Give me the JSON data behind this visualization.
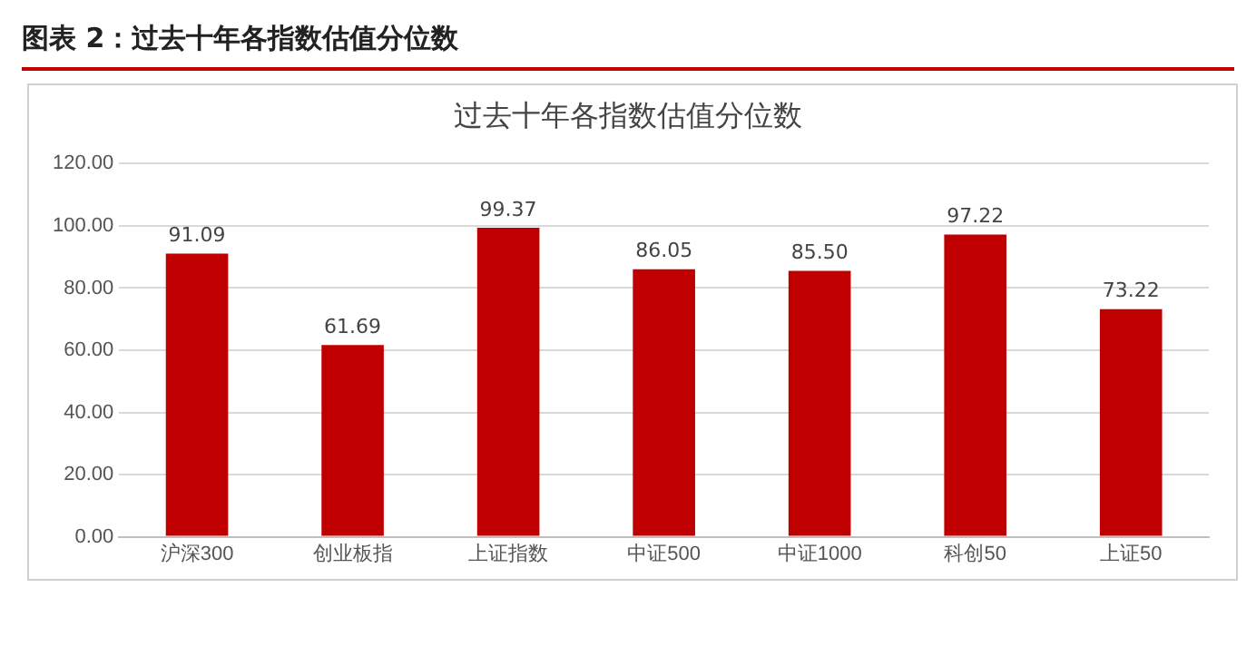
{
  "chart_data": {
    "type": "bar",
    "title": "图表 2：过去十年各指数估值分位数",
    "subtitle": "过去十年各指数估值分位数",
    "categories": [
      "沪深300",
      "创业板指",
      "上证指数",
      "中证500",
      "中证1000",
      "科创50",
      "上证50"
    ],
    "values": [
      91.09,
      61.69,
      99.37,
      86.05,
      85.5,
      97.22,
      73.22
    ],
    "value_labels": [
      "91.09",
      "61.69",
      "99.37",
      "86.05",
      "85.50",
      "97.22",
      "73.22"
    ],
    "color": "#c00000",
    "ylim": [
      0,
      120
    ],
    "yticks": [
      {
        "value": 0,
        "label": "0.00"
      },
      {
        "value": 20,
        "label": "20.00"
      },
      {
        "value": 40,
        "label": "40.00"
      },
      {
        "value": 60,
        "label": "60.00"
      },
      {
        "value": 80,
        "label": "80.00"
      },
      {
        "value": 100,
        "label": "100.00"
      },
      {
        "value": 120,
        "label": "120.00"
      }
    ],
    "grid": "y",
    "legend": false
  }
}
